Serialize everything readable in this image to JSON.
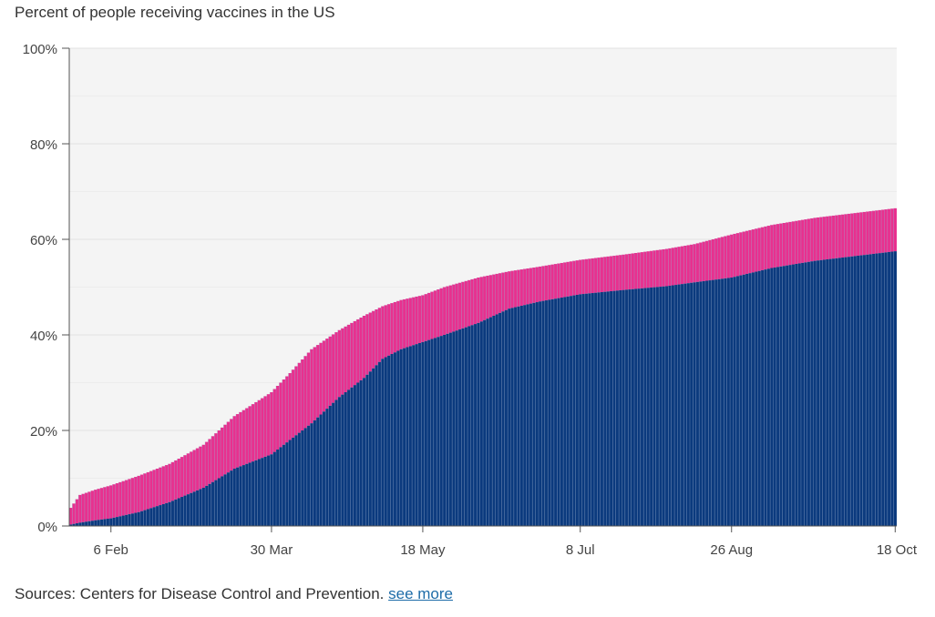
{
  "chart_title": "Percent of people receiving vaccines in the US",
  "footer": {
    "sources": "Sources: Centers for Disease Control and Prevention.",
    "link": "see more"
  },
  "colors": {
    "fully_vaccinated": "#0b3a7e",
    "at_least_one_dose": "#e8308f",
    "plot_background": "#f4f4f4",
    "bar_separator": "#8ea6c8"
  },
  "chart_data": {
    "type": "bar",
    "stacked": true,
    "title": "Percent of people receiving vaccines in the US",
    "xlabel": "",
    "ylabel": "",
    "ylim": [
      0,
      100
    ],
    "y_ticks": [
      0,
      20,
      40,
      60,
      80,
      100
    ],
    "y_tick_labels": [
      "0%",
      "20%",
      "40%",
      "60%",
      "80%",
      "100%"
    ],
    "x_tick_labels": [
      "6 Feb",
      "30 Mar",
      "18 May",
      "8 Jul",
      "26 Aug",
      "18 Oct"
    ],
    "x_range": [
      "2021-01-24",
      "2021-10-18"
    ],
    "grid": true,
    "series": [
      {
        "role": "fully_vaccinated",
        "points": [
          [
            "2021-01-24",
            0.3
          ],
          [
            "2021-01-27",
            0.7
          ],
          [
            "2021-02-01",
            1.2
          ],
          [
            "2021-02-06",
            1.6
          ],
          [
            "2021-02-15",
            2.9
          ],
          [
            "2021-02-25",
            5.0
          ],
          [
            "2021-03-08",
            8.0
          ],
          [
            "2021-03-18",
            12.0
          ],
          [
            "2021-03-30",
            15.0
          ],
          [
            "2021-04-05",
            18.0
          ],
          [
            "2021-04-12",
            21.5
          ],
          [
            "2021-04-21",
            27.0
          ],
          [
            "2021-04-29",
            31.0
          ],
          [
            "2021-05-05",
            35.0
          ],
          [
            "2021-05-11",
            37.0
          ],
          [
            "2021-05-18",
            38.5
          ],
          [
            "2021-05-25",
            40.0
          ],
          [
            "2021-06-05",
            42.5
          ],
          [
            "2021-06-15",
            45.5
          ],
          [
            "2021-06-25",
            47.0
          ],
          [
            "2021-07-08",
            48.5
          ],
          [
            "2021-07-22",
            49.4
          ],
          [
            "2021-08-05",
            50.2
          ],
          [
            "2021-08-14",
            51.0
          ],
          [
            "2021-08-26",
            52.0
          ],
          [
            "2021-09-08",
            54.0
          ],
          [
            "2021-09-22",
            55.5
          ],
          [
            "2021-10-05",
            56.5
          ],
          [
            "2021-10-18",
            57.5
          ]
        ]
      },
      {
        "role": "at_least_one_dose",
        "points": [
          [
            "2021-01-24",
            3.8
          ],
          [
            "2021-01-27",
            6.5
          ],
          [
            "2021-02-01",
            7.6
          ],
          [
            "2021-02-06",
            8.5
          ],
          [
            "2021-02-15",
            10.5
          ],
          [
            "2021-02-25",
            13.0
          ],
          [
            "2021-03-08",
            17.0
          ],
          [
            "2021-03-18",
            23.0
          ],
          [
            "2021-03-30",
            28.0
          ],
          [
            "2021-04-05",
            32.0
          ],
          [
            "2021-04-12",
            37.0
          ],
          [
            "2021-04-21",
            41.0
          ],
          [
            "2021-04-29",
            44.0
          ],
          [
            "2021-05-05",
            46.0
          ],
          [
            "2021-05-11",
            47.3
          ],
          [
            "2021-05-18",
            48.3
          ],
          [
            "2021-05-25",
            50.0
          ],
          [
            "2021-06-05",
            52.0
          ],
          [
            "2021-06-15",
            53.3
          ],
          [
            "2021-06-25",
            54.3
          ],
          [
            "2021-07-08",
            55.7
          ],
          [
            "2021-07-22",
            56.8
          ],
          [
            "2021-08-05",
            58.0
          ],
          [
            "2021-08-14",
            59.0
          ],
          [
            "2021-08-26",
            61.0
          ],
          [
            "2021-09-08",
            63.0
          ],
          [
            "2021-09-22",
            64.5
          ],
          [
            "2021-10-05",
            65.5
          ],
          [
            "2021-10-18",
            66.5
          ]
        ]
      }
    ]
  }
}
